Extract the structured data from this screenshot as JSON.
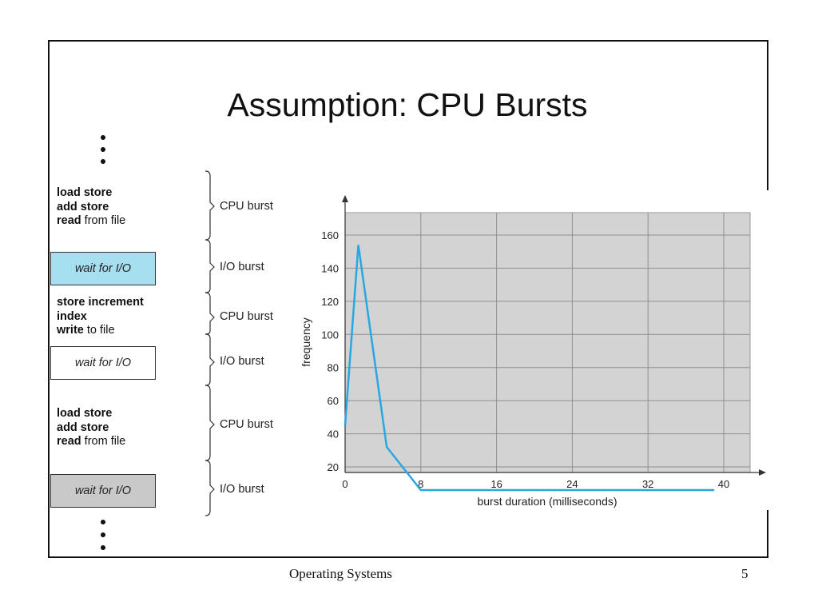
{
  "slide": {
    "title": "Assumption: CPU Bursts",
    "footer_text": "Operating Systems",
    "page_number": "5"
  },
  "timeline": {
    "code_blocks": [
      {
        "lines": [
          {
            "bold": "load store",
            "rest": ""
          },
          {
            "bold": "add store",
            "rest": ""
          },
          {
            "bold": "read",
            "rest": " from file"
          }
        ]
      },
      {
        "lines": [
          {
            "bold": "store increment",
            "rest": ""
          },
          {
            "bold": "index",
            "rest": ""
          },
          {
            "bold": "write",
            "rest": " to file"
          }
        ]
      },
      {
        "lines": [
          {
            "bold": "load store",
            "rest": ""
          },
          {
            "bold": "add store",
            "rest": ""
          },
          {
            "bold": "read",
            "rest": " from file"
          }
        ]
      }
    ],
    "wait_boxes": [
      {
        "label": "wait for I/O",
        "color": "#a6dff0"
      },
      {
        "label": "wait for I/O",
        "color": "#ffffff"
      },
      {
        "label": "wait for I/O",
        "color": "#c9c9c9"
      }
    ],
    "bursts": [
      "CPU burst",
      "I/O burst",
      "CPU burst",
      "I/O burst",
      "CPU burst",
      "I/O burst"
    ]
  },
  "chart_data": {
    "type": "line",
    "xlabel": "burst duration (milliseconds)",
    "ylabel": "frequency",
    "xlim": [
      0,
      40
    ],
    "ylim": [
      0,
      160
    ],
    "xticks": [
      0,
      8,
      16,
      24,
      32,
      40
    ],
    "yticks": [
      20,
      40,
      60,
      80,
      100,
      120,
      140,
      160
    ],
    "grid": true,
    "plot_background": "#d3d3d3",
    "line_color": "#2aa7e0",
    "series": [
      {
        "x": [
          0,
          1.4,
          4.4,
          8,
          39
        ],
        "y": [
          45,
          154,
          32,
          6,
          6
        ]
      }
    ]
  }
}
